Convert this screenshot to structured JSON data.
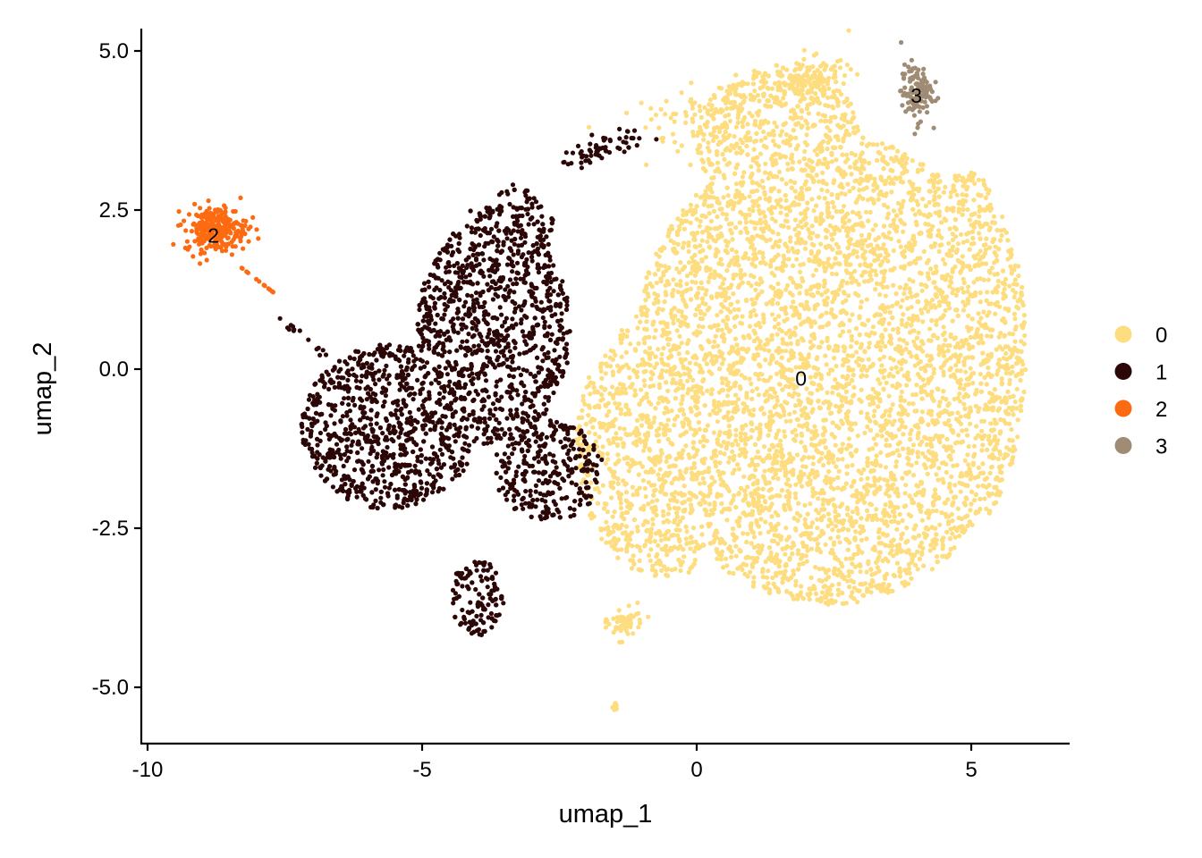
{
  "chart_data": {
    "type": "scatter",
    "xlabel": "umap_1",
    "ylabel": "umap_2",
    "xlim": [
      -10.1,
      6.8
    ],
    "ylim": [
      -5.85,
      5.35
    ],
    "x_ticks": [
      -10,
      -5,
      0,
      5
    ],
    "x_tick_labels": [
      "-10",
      "-5",
      "0",
      "5"
    ],
    "y_ticks": [
      5.0,
      2.5,
      0.0,
      -2.5,
      -5.0
    ],
    "y_tick_labels": [
      "5.0",
      "2.5",
      "0.0",
      "-2.5",
      "-5.0"
    ],
    "grid": false,
    "legend_position": "right",
    "legend": [
      {
        "label": "0",
        "color": "#FDDD7F"
      },
      {
        "label": "1",
        "color": "#2B0707"
      },
      {
        "label": "2",
        "color": "#FC6B11"
      },
      {
        "label": "3",
        "color": "#A08B74"
      }
    ],
    "cluster_labels": [
      {
        "text": "0",
        "x": 1.9,
        "y": -0.15
      },
      {
        "text": "1",
        "x": -4.9,
        "y": -0.7
      },
      {
        "text": "2",
        "x": -8.8,
        "y": 2.1
      },
      {
        "text": "3",
        "x": 4.0,
        "y": 4.3
      }
    ],
    "series": [
      {
        "cluster": "0",
        "color": "#FDDD7F",
        "n_points": 7800
      },
      {
        "cluster": "1",
        "color": "#2B0707",
        "n_points": 3000
      },
      {
        "cluster": "2",
        "color": "#FC6B11",
        "n_points": 260
      },
      {
        "cluster": "3",
        "color": "#A08B74",
        "n_points": 120
      }
    ]
  }
}
